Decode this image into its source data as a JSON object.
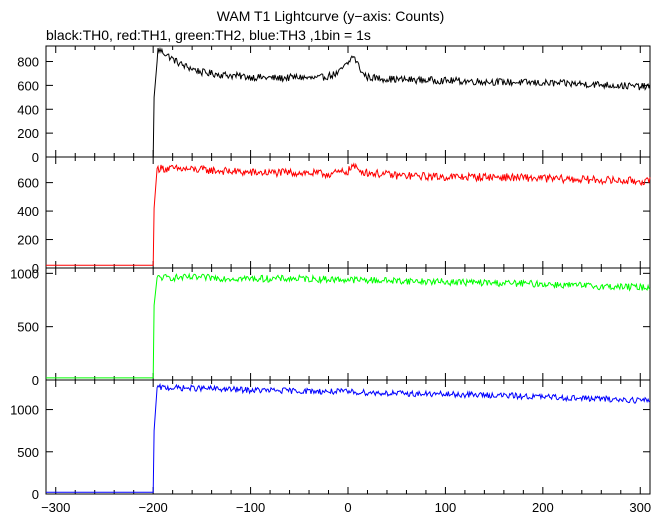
{
  "chart_data": {
    "type": "line",
    "title": "WAM T1 Lightcurve (y−axis: Counts)",
    "subtitle": "black:TH0, red:TH1, green:TH2, blue:TH3 ,1bin = 1s",
    "xlabel": "",
    "xlim": [
      -310,
      310
    ],
    "x_ticks": [
      -300,
      -200,
      -100,
      0,
      100,
      200,
      300
    ],
    "x_tick_labels": [
      "−300",
      "−200",
      "−100",
      "0",
      "100",
      "200",
      "300"
    ],
    "grid": false,
    "panels": [
      {
        "name": "TH0",
        "color": "#000000",
        "ylim": [
          0,
          930
        ],
        "y_ticks": [
          0,
          200,
          400,
          600,
          800
        ],
        "y_tick_labels": [
          "0",
          "200",
          "400",
          "600",
          "800"
        ],
        "x": [
          -310,
          -200,
          -199,
          -195,
          -190,
          -180,
          -170,
          -160,
          -150,
          -130,
          -100,
          -70,
          -50,
          -40,
          -30,
          -20,
          -10,
          -5,
          0,
          5,
          10,
          15,
          20,
          30,
          50,
          100,
          150,
          200,
          250,
          300,
          310
        ],
        "y": [
          0,
          0,
          500,
          900,
          880,
          820,
          770,
          740,
          710,
          690,
          670,
          660,
          670,
          660,
          660,
          680,
          700,
          750,
          780,
          850,
          780,
          700,
          670,
          660,
          650,
          640,
          630,
          620,
          610,
          590,
          590
        ],
        "noise": 30
      },
      {
        "name": "TH1",
        "color": "#ff0000",
        "ylim": [
          0,
          780
        ],
        "y_ticks": [
          0,
          200,
          400,
          600
        ],
        "y_tick_labels": [
          "0",
          "200",
          "400",
          "600"
        ],
        "x": [
          -310,
          -200,
          -199,
          -196,
          -190,
          -150,
          -100,
          -50,
          -20,
          0,
          5,
          10,
          20,
          50,
          100,
          150,
          200,
          250,
          300,
          310
        ],
        "y": [
          20,
          20,
          420,
          700,
          700,
          690,
          670,
          670,
          660,
          680,
          720,
          690,
          670,
          650,
          640,
          640,
          630,
          620,
          610,
          610
        ],
        "noise": 28
      },
      {
        "name": "TH2",
        "color": "#00ff00",
        "ylim": [
          0,
          1050
        ],
        "y_ticks": [
          0,
          500,
          1000
        ],
        "y_tick_labels": [
          "0",
          "500",
          "1000"
        ],
        "x": [
          -310,
          -200,
          -199,
          -196,
          -190,
          -150,
          -100,
          -50,
          0,
          50,
          100,
          150,
          200,
          250,
          300,
          310
        ],
        "y": [
          20,
          20,
          700,
          960,
          960,
          960,
          950,
          950,
          940,
          930,
          920,
          910,
          900,
          880,
          870,
          870
        ],
        "noise": 32
      },
      {
        "name": "TH3",
        "color": "#0000ff",
        "ylim": [
          0,
          1350
        ],
        "y_ticks": [
          0,
          500,
          1000
        ],
        "y_tick_labels": [
          "0",
          "500",
          "1000"
        ],
        "x": [
          -310,
          -200,
          -199,
          -196,
          -190,
          -150,
          -100,
          -50,
          0,
          50,
          100,
          150,
          200,
          250,
          300,
          310
        ],
        "y": [
          20,
          20,
          750,
          1260,
          1260,
          1250,
          1230,
          1220,
          1210,
          1190,
          1180,
          1170,
          1150,
          1130,
          1110,
          1110
        ],
        "noise": 35
      }
    ]
  }
}
